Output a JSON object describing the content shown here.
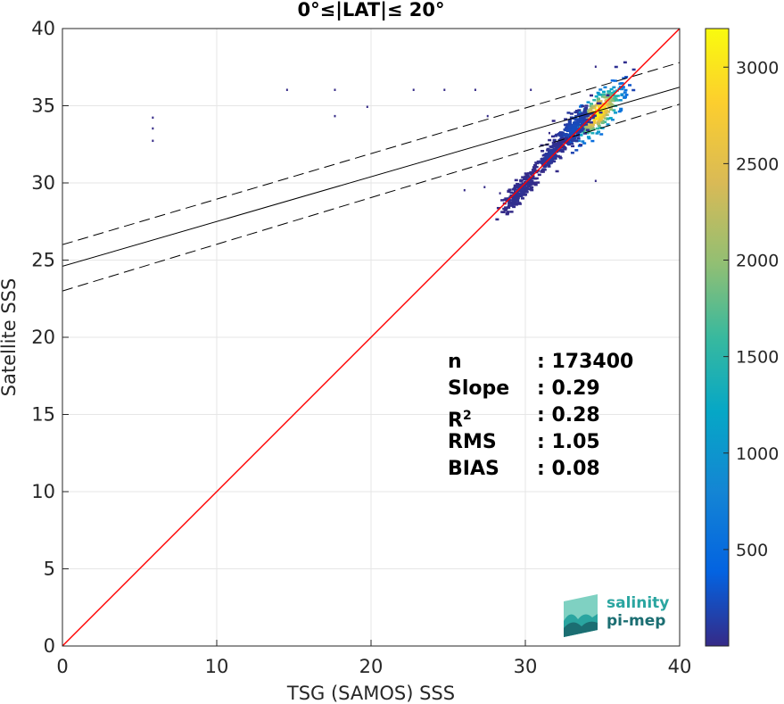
{
  "chart_data": {
    "type": "heatmap",
    "title": "0°≤|LAT|≤ 20°",
    "xlabel": "TSG (SAMOS) SSS",
    "ylabel": "Satellite SSS",
    "xlim": [
      0,
      40
    ],
    "ylim": [
      0,
      40
    ],
    "xticks": [
      "0",
      "10",
      "20",
      "30",
      "40"
    ],
    "yticks": [
      "0",
      "5",
      "10",
      "15",
      "20",
      "25",
      "30",
      "35",
      "40"
    ],
    "grid": true,
    "colorbar": {
      "range": [
        0,
        3200
      ],
      "ticks": [
        "500",
        "1000",
        "1500",
        "2000",
        "2500",
        "3000"
      ],
      "colormap": "parula"
    },
    "lines": {
      "identity": {
        "x": [
          0,
          40
        ],
        "y": [
          0,
          40
        ],
        "color": "#ff0000"
      },
      "regression": {
        "x": [
          0,
          40
        ],
        "y": [
          24.6,
          36.2
        ],
        "color": "#000000"
      },
      "upper_bound": {
        "x": [
          0,
          40
        ],
        "y": [
          26.0,
          37.8
        ],
        "color": "#000000",
        "style": "dashed"
      },
      "lower_bound": {
        "x": [
          0,
          40
        ],
        "y": [
          23.0,
          35.1
        ],
        "color": "#000000",
        "style": "dashed"
      }
    },
    "density_clusters": [
      {
        "x": 34.6,
        "y": 34.6,
        "spread": 1.2,
        "peak": 3200
      },
      {
        "x": 33.0,
        "y": 33.6,
        "spread": 0.9,
        "peak": 250
      },
      {
        "x": 31.5,
        "y": 31.8,
        "spread": 0.6,
        "peak": 120
      },
      {
        "x": 29.5,
        "y": 29.5,
        "spread": 0.7,
        "peak": 60
      }
    ],
    "outlier_points": [
      {
        "x": 5.8,
        "y": 34.3
      },
      {
        "x": 5.8,
        "y": 33.6
      },
      {
        "x": 5.8,
        "y": 32.8
      },
      {
        "x": 14.5,
        "y": 36.1
      },
      {
        "x": 17.6,
        "y": 36.1
      },
      {
        "x": 17.6,
        "y": 34.4
      },
      {
        "x": 19.7,
        "y": 35.0
      },
      {
        "x": 22.7,
        "y": 36.1
      },
      {
        "x": 24.7,
        "y": 36.1
      },
      {
        "x": 26.7,
        "y": 36.1
      },
      {
        "x": 27.5,
        "y": 34.4
      },
      {
        "x": 30.3,
        "y": 36.1
      },
      {
        "x": 26.0,
        "y": 29.6
      },
      {
        "x": 27.3,
        "y": 29.8
      },
      {
        "x": 28.3,
        "y": 29.4
      },
      {
        "x": 34.5,
        "y": 37.6
      },
      {
        "x": 34.5,
        "y": 30.2
      },
      {
        "x": 31.5,
        "y": 33.3
      }
    ],
    "stats": {
      "n_label": "n",
      "n_value": ": 173400",
      "slope_label": "Slope",
      "slope_value": ": 0.29",
      "r2_label": "R",
      "r2_sup": "2",
      "r2_value": ": 0.28",
      "rms_label": "RMS",
      "rms_value": ": 1.05",
      "bias_label": "BIAS",
      "bias_value": ": 0.08"
    }
  },
  "logo": {
    "line1": "salinity",
    "line2": "pi-mep"
  }
}
